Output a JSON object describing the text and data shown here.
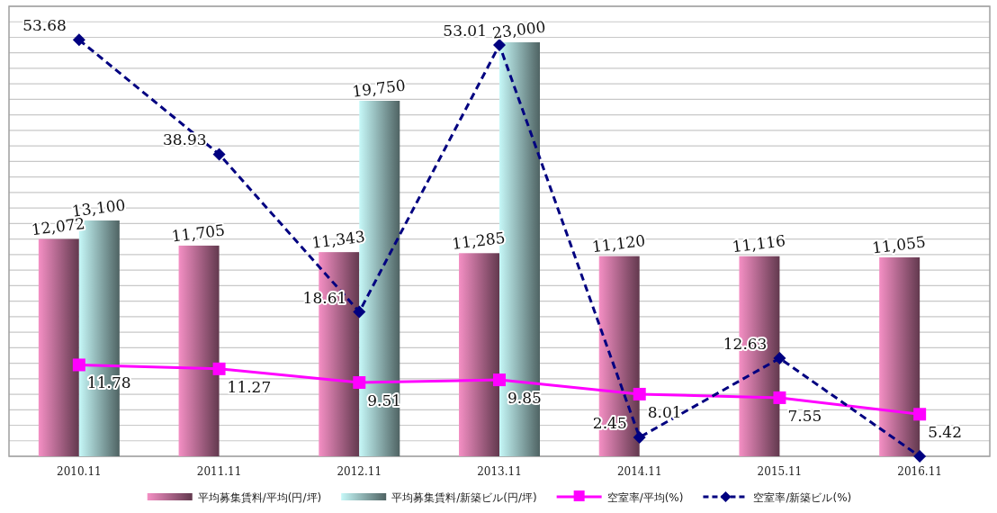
{
  "chart_data": {
    "type": "bar",
    "categories": [
      "2010.11",
      "2011.11",
      "2012.11",
      "2013.11",
      "2014.11",
      "2015.11",
      "2016.11"
    ],
    "tick_labels": "x",
    "grid": true,
    "legend": "bottom",
    "ylim": [
      0,
      25000
    ],
    "y2lim": [
      0,
      58
    ],
    "y2ticks": [
      {
        "value": 0,
        "label": null
      },
      {
        "value": 2,
        "label": null
      },
      {
        "value": 4,
        "label": null
      },
      {
        "value": 6,
        "label": null
      },
      {
        "value": 8,
        "label": null
      },
      {
        "value": 10,
        "label": null
      },
      {
        "value": 12,
        "label": null
      },
      {
        "value": 14,
        "label": null
      },
      {
        "value": 16,
        "label": null
      },
      {
        "value": 18,
        "label": null
      },
      {
        "value": 20,
        "label": null
      },
      {
        "value": 22,
        "label": null
      },
      {
        "value": 24,
        "label": null
      },
      {
        "value": 26,
        "label": null
      },
      {
        "value": 28,
        "label": null
      },
      {
        "value": 30,
        "label": null
      },
      {
        "value": 32,
        "label": null
      },
      {
        "value": 34,
        "label": null
      },
      {
        "value": 36,
        "label": null
      },
      {
        "value": 38,
        "label": null
      },
      {
        "value": 40,
        "label": null
      },
      {
        "value": 42,
        "label": null
      },
      {
        "value": 44,
        "label": null
      },
      {
        "value": 46,
        "label": null
      },
      {
        "value": 48,
        "label": null
      },
      {
        "value": 50,
        "label": null
      },
      {
        "value": 52,
        "label": null
      },
      {
        "value": 54,
        "label": null
      },
      {
        "value": 56,
        "label": null
      },
      {
        "value": 58,
        "label": null
      }
    ],
    "series": [
      {
        "name": "平均募集賃料/平均(円/坪)",
        "color": "#f48fc4",
        "values": [
          12072,
          11705,
          11343,
          11285,
          11120,
          11116,
          11055
        ],
        "value_labels": [
          "12,072",
          "11,705",
          "11,343",
          "11,285",
          "11,120",
          "11,116",
          "11,055"
        ]
      },
      {
        "name": "平均募集賃料/新築ビル(円/坪)",
        "color": "#c6f8f8",
        "values": [
          13100,
          null,
          19750,
          23000,
          null,
          null,
          null
        ],
        "value_labels": [
          "13,100",
          null,
          "19,750",
          "23,000",
          null,
          null,
          null
        ]
      },
      {
        "name": "空室率/平均(%)",
        "type": "line",
        "axis": "y2",
        "color": "#ff00ff",
        "marker": "square",
        "line_style": "solid",
        "values": [
          11.78,
          11.27,
          9.51,
          9.85,
          8.01,
          7.55,
          5.42
        ],
        "value_labels": [
          "11.78",
          "11.27",
          "9.51",
          "9.85",
          "8.01",
          "7.55",
          "5.42"
        ]
      },
      {
        "name": "空室率/新築ビル(%)",
        "type": "line",
        "axis": "y2",
        "color": "#000080",
        "marker": "diamond",
        "line_style": "dashed",
        "values": [
          53.68,
          38.93,
          18.61,
          53.01,
          2.45,
          12.63,
          0
        ],
        "value_labels": [
          "53.68",
          "38.93",
          "18.61",
          "53.01",
          "2.45",
          "12.63",
          null
        ]
      }
    ]
  }
}
